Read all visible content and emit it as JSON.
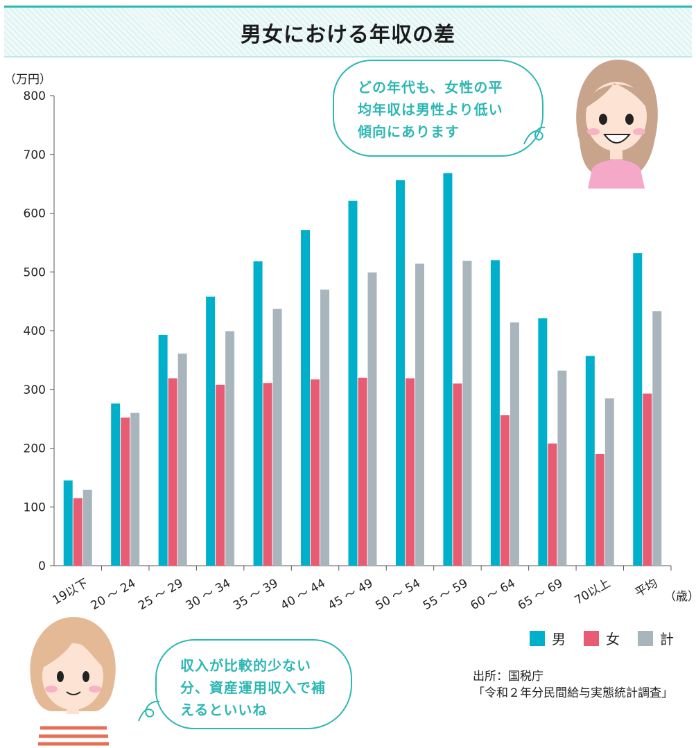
{
  "title": "男女における年収の差",
  "speech_top": [
    "どの年代も、女性の平",
    "均年収は男性より低い",
    "傾向にあります"
  ],
  "speech_bottom": [
    "収入が比較的少ない",
    "分、資産運用収入で補",
    "えるといいね"
  ],
  "source": [
    "出所：国税庁",
    "「令和２年分民間給与実態統計調査」"
  ],
  "colors": {
    "accent": "#2bb7b3",
    "male": "#00afc9",
    "female": "#e85c73",
    "total": "#a9b5bd"
  },
  "chart_data": {
    "type": "bar",
    "ylabel": "（万円）",
    "xlabel": "（歳）",
    "ylim": [
      0,
      800
    ],
    "yticks": [
      0,
      100,
      200,
      300,
      400,
      500,
      600,
      700,
      800
    ],
    "categories": [
      "19以下",
      "20 ～ 24",
      "25 ～ 29",
      "30 ～ 34",
      "35 ～ 39",
      "40 ～ 44",
      "45 ～ 49",
      "50 ～ 54",
      "55 ～ 59",
      "60 ～ 64",
      "65 ～ 69",
      "70以上",
      "平均"
    ],
    "series": [
      {
        "name": "男",
        "color": "#00afc9",
        "values": [
          145,
          276,
          393,
          458,
          518,
          571,
          621,
          656,
          668,
          520,
          421,
          357,
          532
        ]
      },
      {
        "name": "女",
        "color": "#e85c73",
        "values": [
          115,
          252,
          319,
          308,
          311,
          317,
          320,
          319,
          310,
          256,
          208,
          190,
          293
        ]
      },
      {
        "name": "計",
        "color": "#a9b5bd",
        "values": [
          129,
          260,
          361,
          399,
          437,
          470,
          499,
          514,
          519,
          414,
          332,
          285,
          433
        ]
      }
    ],
    "legend": "bottom-right",
    "grid": false
  }
}
